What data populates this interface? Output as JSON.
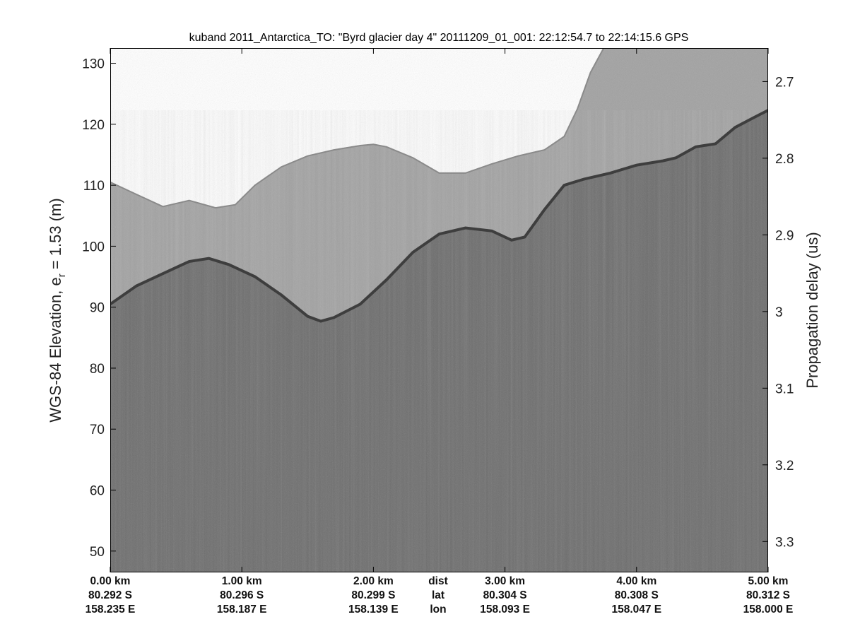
{
  "chart_data": {
    "type": "heatmap",
    "title": "kuband 2011_Antarctica_TO: \"Byrd glacier day 4\"  20111209_01_001: 22:12:54.7 to 22:14:15.6 GPS",
    "ylabel_main": "WGS-84 Elevation, e",
    "ylabel_sub": "r",
    "ylabel_rest": " = 1.53 (m)",
    "y2label": "Propagation delay (us)",
    "colormap": "gray",
    "ylim": [
      46.5,
      132.5
    ],
    "yticks": [
      50,
      60,
      70,
      80,
      90,
      100,
      110,
      120,
      130
    ],
    "y2lim": [
      2.6563,
      3.3403
    ],
    "y2ticks": [
      2.7,
      2.8,
      2.9,
      3,
      3.1,
      3.2,
      3.3
    ],
    "xlim_km": [
      0,
      5
    ],
    "x_ticks": [
      {
        "dist": "0.00 km",
        "lat": "80.292 S",
        "lon": "158.235 E"
      },
      {
        "dist": "1.00 km",
        "lat": "80.296 S",
        "lon": "158.187 E"
      },
      {
        "dist": "2.00 km",
        "lat": "80.299 S",
        "lon": "158.139 E"
      },
      {
        "dist": "3.00 km",
        "lat": "80.304 S",
        "lon": "158.093 E"
      },
      {
        "dist": "4.00 km",
        "lat": "80.308 S",
        "lon": "158.047 E"
      },
      {
        "dist": "5.00 km",
        "lat": "80.312 S",
        "lon": "158.000 E"
      }
    ],
    "row_labels": {
      "dist": "dist",
      "lat": "lat",
      "lon": "lon"
    },
    "surface_profile": {
      "x_km": [
        0,
        0.2,
        0.4,
        0.6,
        0.8,
        0.95,
        1.1,
        1.3,
        1.5,
        1.7,
        1.9,
        2.0,
        2.1,
        2.3,
        2.5,
        2.7,
        2.9,
        3.1,
        3.3,
        3.45,
        3.55,
        3.65,
        3.75,
        3.85,
        4.0,
        4.2,
        4.35,
        4.5,
        4.6,
        4.8,
        5.0
      ],
      "elev_m": [
        110.5,
        108.5,
        106.5,
        107.5,
        106.3,
        106.8,
        110,
        113,
        114.8,
        115.8,
        116.5,
        116.7,
        116.3,
        114.5,
        112,
        112,
        113.5,
        114.8,
        115.8,
        118,
        122.5,
        128.5,
        132.5,
        132.5,
        132.5,
        132.5,
        132.5,
        132.5,
        132.5,
        132.5,
        132.5
      ]
    },
    "bed_profile": {
      "x_km": [
        0,
        0.2,
        0.4,
        0.6,
        0.75,
        0.9,
        1.1,
        1.3,
        1.5,
        1.6,
        1.7,
        1.9,
        2.1,
        2.3,
        2.5,
        2.7,
        2.9,
        3.05,
        3.15,
        3.3,
        3.45,
        3.6,
        3.8,
        4.0,
        4.2,
        4.3,
        4.45,
        4.6,
        4.75,
        4.9,
        5.0
      ],
      "elev_m": [
        90.5,
        93.5,
        95.5,
        97.5,
        98,
        97,
        95,
        92,
        88.5,
        87.7,
        88.3,
        90.5,
        94.5,
        99,
        102,
        103,
        102.5,
        101,
        101.5,
        106,
        110,
        111,
        112,
        113.3,
        114,
        114.5,
        116.3,
        116.8,
        119.5,
        121.2,
        122.3
      ]
    }
  }
}
